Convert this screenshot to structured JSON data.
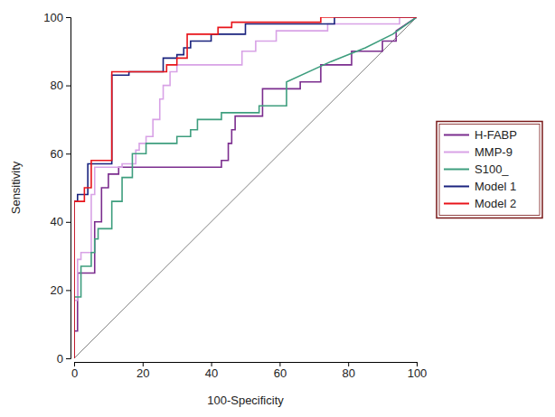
{
  "chart_data": {
    "type": "line",
    "x_label": "100-Specificity",
    "y_label": "Sensitivity",
    "xlim": [
      0,
      100
    ],
    "ylim": [
      0,
      100
    ],
    "xticks": [
      0,
      20,
      40,
      60,
      80,
      100
    ],
    "yticks": [
      0,
      20,
      40,
      60,
      80,
      100
    ],
    "legend": "right",
    "series": [
      {
        "color": "#808080",
        "x": [
          0,
          100
        ],
        "values": [
          0,
          100
        ]
      },
      {
        "name": "H-FABP",
        "color": "#7b2d8e",
        "x": [
          0,
          0,
          1,
          1,
          6,
          6,
          8,
          8,
          10,
          10,
          13,
          13,
          43,
          43,
          45,
          45,
          46,
          46,
          47,
          47,
          55,
          55,
          66,
          66,
          72,
          72,
          81,
          81,
          90,
          90,
          94,
          94,
          100
        ],
        "values": [
          0,
          8,
          8,
          25,
          25,
          40,
          40,
          50,
          50,
          54,
          54,
          56,
          56,
          58,
          58,
          63,
          63,
          67,
          67,
          71,
          71,
          79,
          79,
          81,
          81,
          86,
          86,
          90,
          90,
          93,
          93,
          96,
          100
        ]
      },
      {
        "name": "MMP-9",
        "color": "#d8a2e6",
        "x": [
          0,
          0,
          1,
          1,
          2,
          2,
          5,
          5,
          6,
          6,
          14,
          14,
          18,
          18,
          19,
          19,
          21,
          21,
          23,
          23,
          25,
          25,
          26,
          26,
          28,
          28,
          30,
          30,
          49,
          49,
          53,
          53,
          59,
          59,
          74,
          74,
          95,
          95,
          100
        ],
        "values": [
          0,
          17,
          17,
          29,
          29,
          31,
          31,
          48,
          48,
          56,
          56,
          57,
          57,
          61,
          61,
          63,
          63,
          65,
          65,
          70,
          70,
          76,
          76,
          80,
          80,
          84,
          84,
          86,
          86,
          90,
          90,
          93,
          93,
          96,
          96,
          98,
          98,
          100,
          100
        ]
      },
      {
        "name": "S100_",
        "color": "#3e9e7e",
        "x": [
          0,
          0,
          2,
          2,
          5,
          5,
          6,
          6,
          7,
          7,
          11,
          11,
          14,
          14,
          17,
          17,
          21,
          21,
          30,
          30,
          34,
          34,
          36,
          36,
          43,
          43,
          54,
          54,
          62,
          62,
          75,
          85,
          93,
          100
        ],
        "values": [
          0,
          18,
          18,
          27,
          27,
          31,
          31,
          35,
          35,
          38,
          38,
          46,
          46,
          53,
          53,
          60,
          60,
          63,
          63,
          65,
          65,
          67,
          67,
          70,
          70,
          72,
          72,
          74,
          74,
          81,
          87,
          91,
          95,
          100
        ]
      },
      {
        "name": "Model 1",
        "color": "#1a237e",
        "x": [
          0,
          0,
          1,
          1,
          4,
          4,
          11,
          11,
          16,
          16,
          26,
          26,
          30,
          30,
          32,
          32,
          34,
          34,
          40,
          40,
          50,
          50,
          76,
          76,
          100
        ],
        "values": [
          0,
          46,
          46,
          48,
          48,
          57,
          57,
          83,
          83,
          84,
          84,
          88,
          88,
          89,
          89,
          91,
          91,
          93,
          93,
          95,
          95,
          98,
          98,
          100,
          100
        ]
      },
      {
        "name": "Model 2",
        "color": "#e8141a",
        "x": [
          0,
          0,
          3,
          3,
          5,
          5,
          11,
          11,
          27,
          27,
          30,
          30,
          33,
          33,
          42,
          42,
          46,
          46,
          72,
          72,
          100
        ],
        "values": [
          0,
          46,
          46,
          50,
          50,
          58,
          58,
          84,
          84,
          86,
          86,
          88,
          88,
          95,
          95,
          97,
          97,
          98.5,
          98.5,
          100,
          100
        ]
      }
    ]
  }
}
